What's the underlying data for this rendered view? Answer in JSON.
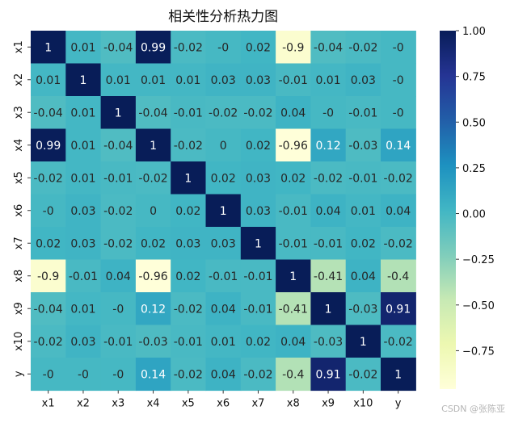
{
  "chart_data": {
    "type": "heatmap",
    "title": "相关性分析热力图",
    "row_labels": [
      "x1",
      "x2",
      "x3",
      "x4",
      "x5",
      "x6",
      "x7",
      "x8",
      "x9",
      "x10",
      "y"
    ],
    "col_labels": [
      "x1",
      "x2",
      "x3",
      "x4",
      "x5",
      "x6",
      "x7",
      "x8",
      "x9",
      "x10",
      "y"
    ],
    "values": [
      [
        1,
        0.01,
        -0.04,
        0.99,
        -0.02,
        0,
        0.02,
        -0.9,
        -0.04,
        -0.02,
        0
      ],
      [
        0.01,
        1,
        0.01,
        0.01,
        0.01,
        0.03,
        0.03,
        -0.01,
        0.01,
        0.03,
        0
      ],
      [
        -0.04,
        0.01,
        1,
        -0.04,
        -0.01,
        -0.02,
        -0.02,
        0.04,
        0,
        -0.01,
        0
      ],
      [
        0.99,
        0.01,
        -0.04,
        1,
        -0.02,
        0,
        0.02,
        -0.96,
        0.12,
        -0.03,
        0.14
      ],
      [
        -0.02,
        0.01,
        -0.01,
        -0.02,
        1,
        0.02,
        0.03,
        0.02,
        -0.02,
        -0.01,
        -0.02
      ],
      [
        0,
        0.03,
        -0.02,
        0,
        0.02,
        1,
        0.03,
        -0.01,
        0.04,
        0.01,
        0.04
      ],
      [
        0.02,
        0.03,
        -0.02,
        0.02,
        0.03,
        0.03,
        1,
        -0.01,
        -0.01,
        0.02,
        -0.02
      ],
      [
        -0.9,
        -0.01,
        0.04,
        -0.96,
        0.02,
        -0.01,
        -0.01,
        1,
        -0.41,
        0.04,
        -0.4
      ],
      [
        -0.04,
        0.01,
        0,
        0.12,
        -0.02,
        0.04,
        -0.01,
        -0.41,
        1,
        -0.03,
        0.91
      ],
      [
        -0.02,
        0.03,
        -0.01,
        -0.03,
        -0.01,
        0.01,
        0.02,
        0.04,
        -0.03,
        1,
        -0.02
      ],
      [
        0,
        0,
        0,
        0.14,
        -0.02,
        0.04,
        -0.02,
        -0.4,
        0.91,
        -0.02,
        1
      ]
    ],
    "colormap": "YlGnBu",
    "color_range": [
      -0.96,
      1
    ],
    "colorbar_ticks": [
      1.0,
      0.75,
      0.5,
      0.25,
      0.0,
      -0.25,
      -0.5,
      -0.75
    ],
    "colorbar_tick_labels": [
      "1.00",
      "0.75",
      "0.50",
      "0.25",
      "0.00",
      "−0.25",
      "−0.50",
      "−0.75"
    ],
    "annotated": true
  },
  "watermark": "CSDN @张陈亚"
}
